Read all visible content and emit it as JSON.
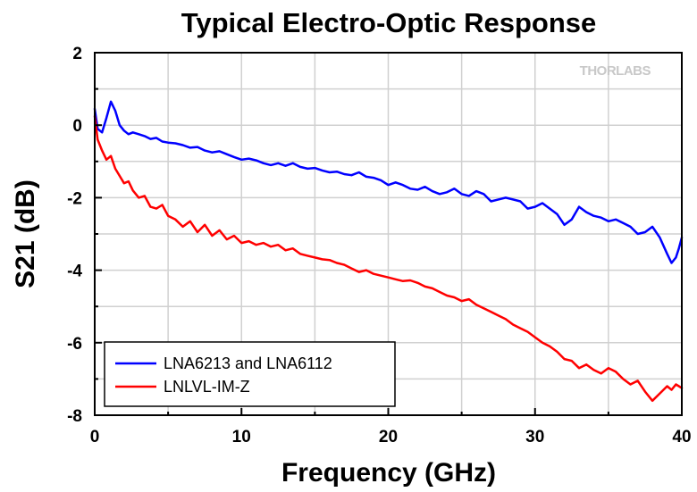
{
  "chart_data": {
    "type": "line",
    "title": "Typical Electro-Optic Response",
    "xlabel": "Frequency (GHz)",
    "ylabel": "S21 (dB)",
    "xlim": [
      0,
      40
    ],
    "ylim": [
      -8,
      2
    ],
    "xticks": [
      0,
      10,
      20,
      30,
      40
    ],
    "yticks": [
      2,
      0,
      -2,
      -4,
      -6,
      -8
    ],
    "grid": true,
    "legend_position": "bottom-left",
    "watermark": "THORLABS",
    "series": [
      {
        "name": "LNA6213 and LNA6112",
        "color": "#0000ff",
        "x": [
          0,
          0.2,
          0.5,
          0.8,
          1.1,
          1.4,
          1.7,
          2.0,
          2.3,
          2.6,
          3.0,
          3.4,
          3.8,
          4.2,
          4.6,
          5.0,
          5.5,
          6.0,
          6.5,
          7.0,
          7.5,
          8.0,
          8.5,
          9.0,
          9.5,
          10.0,
          10.5,
          11.0,
          11.5,
          12.0,
          12.5,
          13.0,
          13.5,
          14.0,
          14.5,
          15.0,
          15.5,
          16.0,
          16.5,
          17.0,
          17.5,
          18.0,
          18.5,
          19.0,
          19.5,
          20.0,
          20.5,
          21.0,
          21.5,
          22.0,
          22.5,
          23.0,
          23.5,
          24.0,
          24.5,
          25.0,
          25.5,
          26.0,
          26.5,
          27.0,
          27.5,
          28.0,
          28.5,
          29.0,
          29.5,
          30.0,
          30.5,
          31.0,
          31.5,
          32.0,
          32.5,
          33.0,
          33.5,
          34.0,
          34.5,
          35.0,
          35.5,
          36.0,
          36.5,
          37.0,
          37.5,
          38.0,
          38.5,
          39.0,
          39.3,
          39.6,
          39.8,
          40.0
        ],
        "values": [
          0.45,
          -0.1,
          -0.2,
          0.2,
          0.65,
          0.4,
          0.0,
          -0.15,
          -0.25,
          -0.2,
          -0.25,
          -0.3,
          -0.38,
          -0.35,
          -0.45,
          -0.48,
          -0.5,
          -0.55,
          -0.62,
          -0.6,
          -0.7,
          -0.75,
          -0.72,
          -0.8,
          -0.88,
          -0.95,
          -0.92,
          -0.97,
          -1.05,
          -1.1,
          -1.05,
          -1.12,
          -1.05,
          -1.15,
          -1.2,
          -1.18,
          -1.25,
          -1.3,
          -1.28,
          -1.35,
          -1.38,
          -1.3,
          -1.42,
          -1.45,
          -1.52,
          -1.65,
          -1.58,
          -1.65,
          -1.75,
          -1.78,
          -1.7,
          -1.82,
          -1.9,
          -1.85,
          -1.75,
          -1.9,
          -1.95,
          -1.82,
          -1.9,
          -2.1,
          -2.05,
          -2.0,
          -2.05,
          -2.1,
          -2.3,
          -2.25,
          -2.15,
          -2.3,
          -2.45,
          -2.75,
          -2.6,
          -2.25,
          -2.4,
          -2.5,
          -2.55,
          -2.65,
          -2.6,
          -2.7,
          -2.8,
          -3.0,
          -2.95,
          -2.8,
          -3.1,
          -3.55,
          -3.8,
          -3.65,
          -3.4,
          -3.1
        ]
      },
      {
        "name": "LNLVL-IM-Z",
        "color": "#ff0000",
        "x": [
          0,
          0.2,
          0.5,
          0.8,
          1.1,
          1.4,
          1.7,
          2.0,
          2.3,
          2.6,
          3.0,
          3.4,
          3.8,
          4.2,
          4.6,
          5.0,
          5.5,
          6.0,
          6.5,
          7.0,
          7.5,
          8.0,
          8.5,
          9.0,
          9.5,
          10.0,
          10.5,
          11.0,
          11.5,
          12.0,
          12.5,
          13.0,
          13.5,
          14.0,
          14.5,
          15.0,
          15.5,
          16.0,
          16.5,
          17.0,
          17.5,
          18.0,
          18.5,
          19.0,
          19.5,
          20.0,
          20.5,
          21.0,
          21.5,
          22.0,
          22.5,
          23.0,
          23.5,
          24.0,
          24.5,
          25.0,
          25.5,
          26.0,
          26.5,
          27.0,
          27.5,
          28.0,
          28.5,
          29.0,
          29.5,
          30.0,
          30.5,
          31.0,
          31.5,
          32.0,
          32.5,
          33.0,
          33.5,
          34.0,
          34.5,
          35.0,
          35.5,
          36.0,
          36.5,
          37.0,
          37.5,
          38.0,
          38.5,
          39.0,
          39.3,
          39.6,
          39.8,
          40.0
        ],
        "values": [
          0.25,
          -0.4,
          -0.7,
          -0.95,
          -0.85,
          -1.2,
          -1.4,
          -1.6,
          -1.55,
          -1.8,
          -2.0,
          -1.95,
          -2.25,
          -2.3,
          -2.2,
          -2.5,
          -2.6,
          -2.8,
          -2.65,
          -2.95,
          -2.75,
          -3.05,
          -2.9,
          -3.15,
          -3.05,
          -3.25,
          -3.2,
          -3.3,
          -3.25,
          -3.35,
          -3.3,
          -3.45,
          -3.4,
          -3.55,
          -3.6,
          -3.65,
          -3.7,
          -3.72,
          -3.8,
          -3.85,
          -3.95,
          -4.05,
          -4.0,
          -4.1,
          -4.15,
          -4.2,
          -4.25,
          -4.3,
          -4.28,
          -4.35,
          -4.45,
          -4.5,
          -4.6,
          -4.7,
          -4.75,
          -4.85,
          -4.8,
          -4.95,
          -5.05,
          -5.15,
          -5.25,
          -5.35,
          -5.5,
          -5.6,
          -5.7,
          -5.85,
          -6.0,
          -6.1,
          -6.25,
          -6.45,
          -6.5,
          -6.7,
          -6.6,
          -6.75,
          -6.85,
          -6.7,
          -6.8,
          -7.0,
          -7.15,
          -7.05,
          -7.35,
          -7.6,
          -7.4,
          -7.2,
          -7.3,
          -7.15,
          -7.2,
          -7.25
        ]
      }
    ]
  }
}
